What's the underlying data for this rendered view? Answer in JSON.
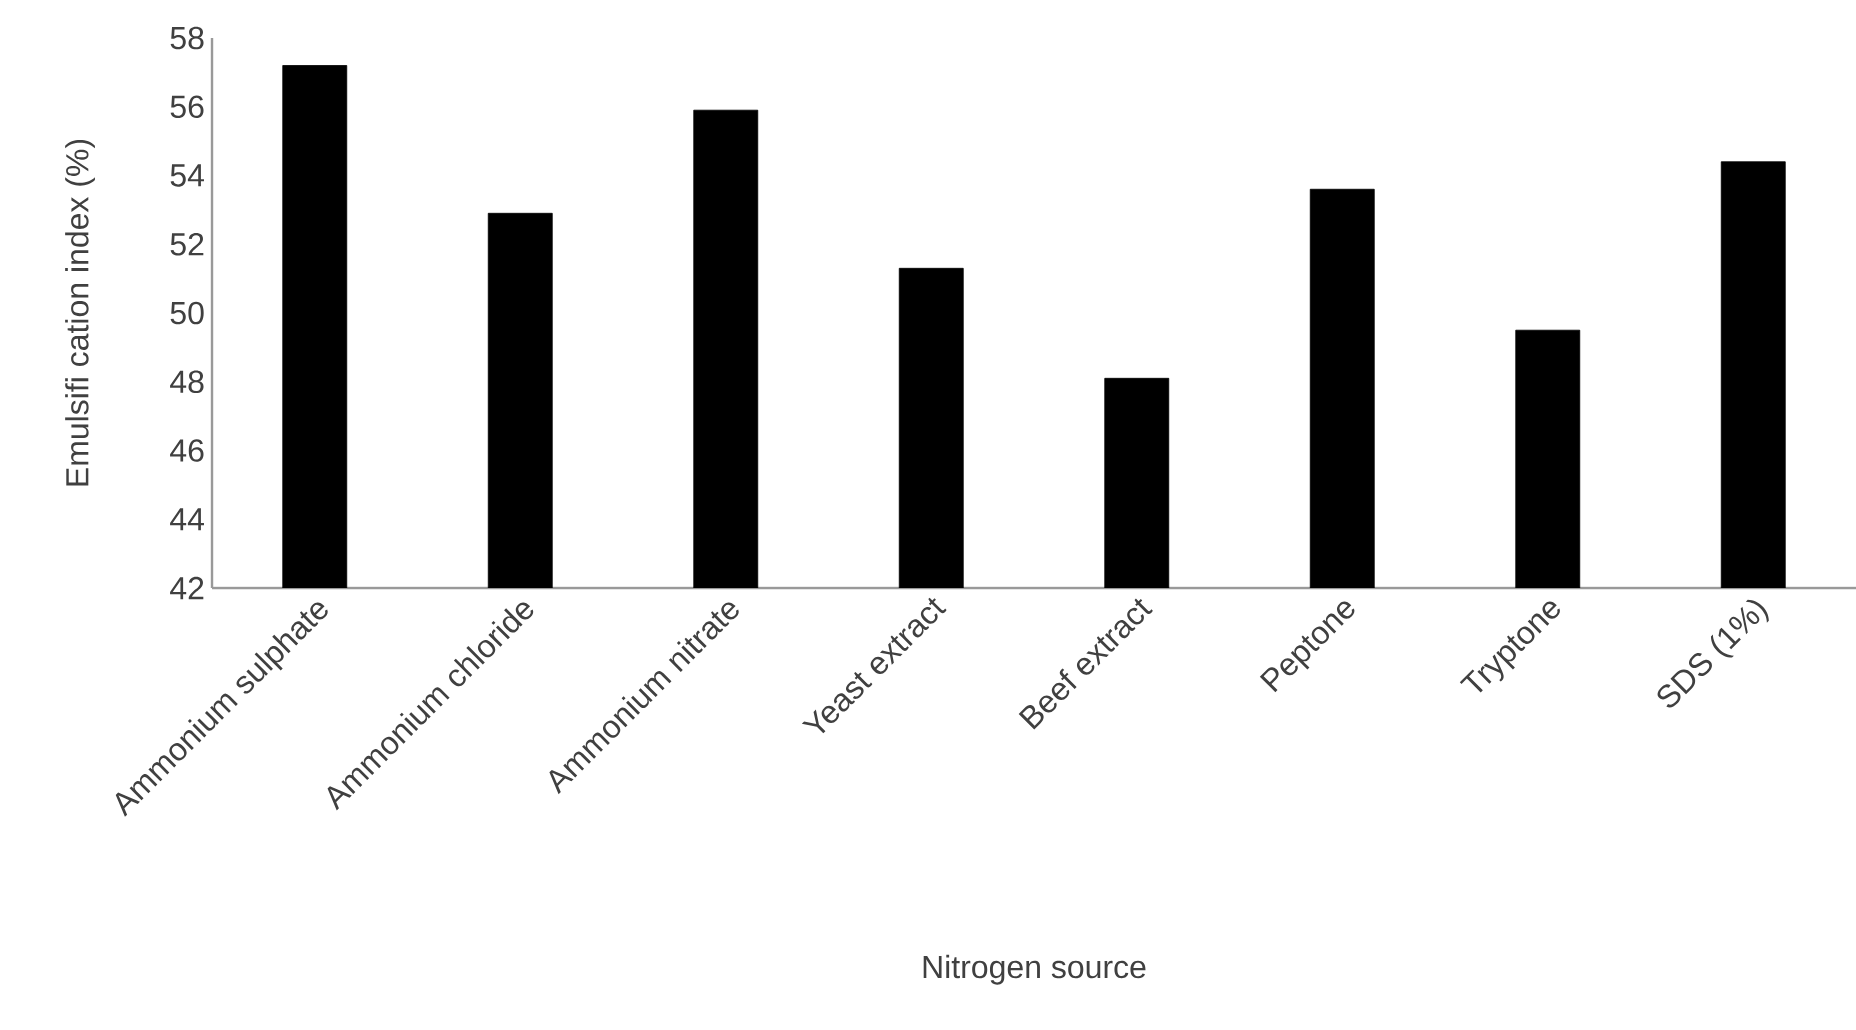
{
  "chart_data": {
    "type": "bar",
    "xlabel": "Nitrogen source",
    "ylabel": "Emulsifi cation index  (%)",
    "categories": [
      "Ammonium sulphate",
      "Ammonium chloride",
      "Ammonium nitrate",
      "Yeast extract",
      "Beef extract",
      "Peptone",
      "Tryptone",
      "SDS (1%)"
    ],
    "values": [
      57.2,
      52.9,
      55.9,
      51.3,
      48.1,
      53.6,
      49.5,
      54.4
    ],
    "color": "#000000",
    "ylim": [
      42,
      58
    ],
    "yticks": [
      42,
      44,
      46,
      48,
      50,
      52,
      54,
      56,
      58
    ],
    "grid": false
  }
}
